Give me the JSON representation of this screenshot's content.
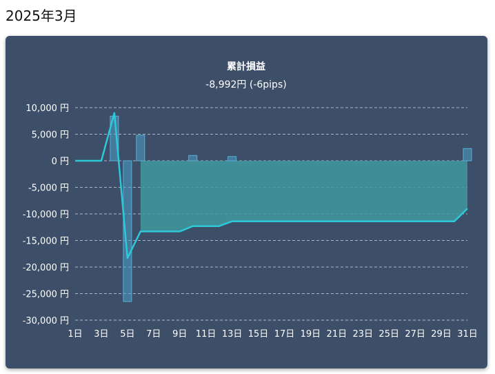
{
  "page": {
    "title": "2025年3月"
  },
  "chart_data": {
    "type": "bar",
    "title": "累計損益",
    "subtitle": "-8,992円 (-6pips)",
    "ylim": [
      -30000,
      10000
    ],
    "yticks": [
      10000,
      5000,
      0,
      -5000,
      -10000,
      -15000,
      -20000,
      -25000,
      -30000
    ],
    "ytick_labels": [
      "10,000 円",
      "5,000 円",
      "0 円",
      "-5,000 円",
      "-10,000 円",
      "-15,000 円",
      "-20,000 円",
      "-25,000 円",
      "-30,000 円"
    ],
    "grid": true,
    "categories": [
      "1日",
      "2日",
      "3日",
      "4日",
      "5日",
      "6日",
      "7日",
      "8日",
      "9日",
      "10日",
      "11日",
      "12日",
      "13日",
      "14日",
      "15日",
      "16日",
      "17日",
      "18日",
      "19日",
      "20日",
      "21日",
      "22日",
      "23日",
      "24日",
      "25日",
      "26日",
      "27日",
      "28日",
      "29日",
      "30日",
      "31日"
    ],
    "xtick_labels": [
      "1日",
      "3日",
      "5日",
      "7日",
      "9日",
      "11日",
      "13日",
      "15日",
      "17日",
      "19日",
      "21日",
      "23日",
      "25日",
      "27日",
      "29日",
      "31日"
    ],
    "series": [
      {
        "kind": "bar",
        "values": [
          0,
          0,
          0,
          8400,
          -26500,
          4800,
          0,
          0,
          0,
          1000,
          0,
          0,
          800,
          0,
          0,
          0,
          0,
          0,
          0,
          0,
          0,
          0,
          0,
          0,
          0,
          0,
          0,
          0,
          0,
          0,
          2300
        ],
        "color": "#4a9fc7"
      },
      {
        "kind": "line",
        "values": [
          0,
          0,
          0,
          9000,
          -18300,
          -13300,
          -13300,
          -13300,
          -13300,
          -12300,
          -12300,
          -12300,
          -11400,
          -11400,
          -11400,
          -11400,
          -11400,
          -11400,
          -11400,
          -11400,
          -11400,
          -11400,
          -11400,
          -11400,
          -11400,
          -11400,
          -11400,
          -11400,
          -11400,
          -11400,
          -8992
        ],
        "color": "#2ec9d8",
        "fill": "#3f9aa0"
      }
    ]
  }
}
